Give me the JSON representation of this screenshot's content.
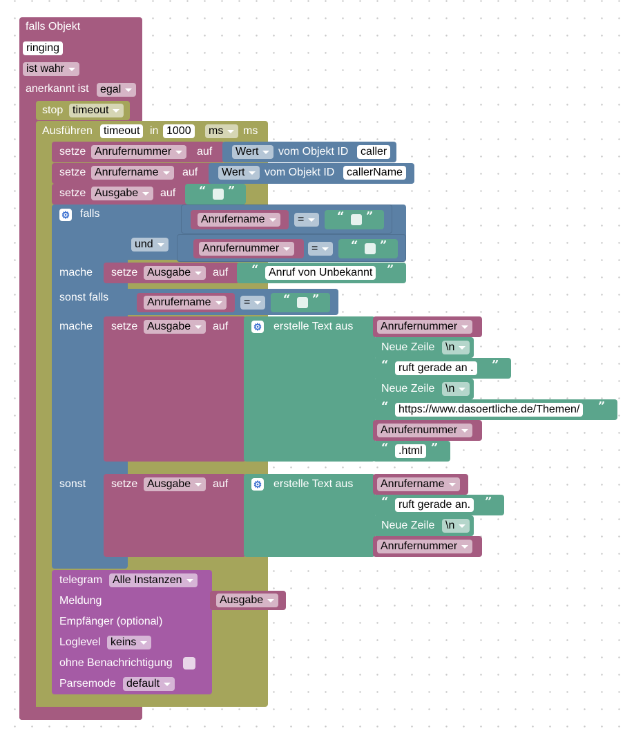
{
  "trigger": {
    "label": "falls Objekt",
    "object_id": "ringing",
    "condition": "ist wahr",
    "ack_label": "anerkannt ist",
    "ack_value": "egal"
  },
  "stop": {
    "label": "stop",
    "timer": "timeout"
  },
  "exec": {
    "label": "Ausführen",
    "timer": "timeout",
    "in_label": "in",
    "delay": "1000",
    "unit": "ms",
    "unit_suffix": "ms"
  },
  "set1": {
    "setze": "setze",
    "var": "Anrufernummer",
    "auf": "auf",
    "prop": "Wert",
    "from": "vom Objekt ID",
    "id": "caller"
  },
  "set2": {
    "setze": "setze",
    "var": "Anrufername",
    "auf": "auf",
    "prop": "Wert",
    "from": "vom Objekt ID",
    "id": "callerName"
  },
  "set3": {
    "setze": "setze",
    "var": "Ausgabe",
    "auf": "auf"
  },
  "if": {
    "falls": "falls",
    "und": "und",
    "cond1_var": "Anrufername",
    "cond1_op": "=",
    "cond2_var": "Anrufernummer",
    "cond2_op": "=",
    "mache1": "mache",
    "then1": {
      "setze": "setze",
      "var": "Ausgabe",
      "auf": "auf",
      "text": "Anruf von Unbekannt"
    },
    "elseif": "sonst falls",
    "cond3_var": "Anrufername",
    "cond3_op": "=",
    "mache2": "mache",
    "then2": {
      "setze": "setze",
      "var": "Ausgabe",
      "auf": "auf",
      "join": "erstelle Text aus",
      "items": {
        "v1": "Anrufernummer",
        "nl1": "Neue Zeile",
        "nl1v": "\\n",
        "t1": "ruft gerade an .",
        "nl2": "Neue Zeile",
        "nl2v": "\\n",
        "t2": "https://www.dasoertliche.de/Themen/",
        "v2": "Anrufernummer",
        "t3": ".html"
      }
    },
    "sonst": "sonst",
    "else": {
      "setze": "setze",
      "var": "Ausgabe",
      "auf": "auf",
      "join": "erstelle Text aus",
      "items": {
        "v1": "Anrufername",
        "t1": "ruft gerade an.",
        "nl1": "Neue Zeile",
        "nl1v": "\\n",
        "v2": "Anrufernummer"
      }
    }
  },
  "telegram": {
    "label": "telegram",
    "instance": "Alle Instanzen",
    "msg_label": "Meldung",
    "msg_var": "Ausgabe",
    "recipient_label": "Empfänger (optional)",
    "loglevel_label": "Loglevel",
    "loglevel": "keins",
    "silent_label": "ohne Benachrichtigung",
    "parse_label": "Parsemode",
    "parse": "default"
  },
  "colors": {
    "object": "#a55b80",
    "timer": "#a5a55b",
    "value": "#5b80a5",
    "text": "#5ba58c",
    "telegram": "#a55ba5"
  },
  "icons": [
    "gear-icon",
    "dropdown-arrow-icon",
    "quote-open-icon",
    "quote-close-icon",
    "checkbox-icon"
  ]
}
